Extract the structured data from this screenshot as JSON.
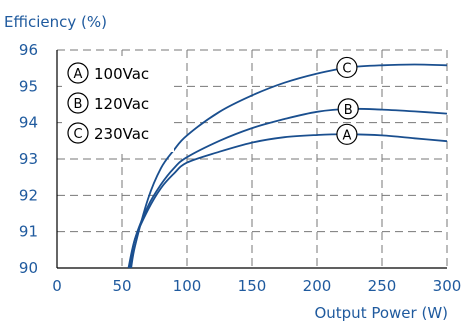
{
  "chart_data": {
    "type": "line",
    "ylabel": "Efficiency (%)",
    "xlabel": "Output Power (W)",
    "xlim": [
      0,
      300
    ],
    "ylim": [
      90,
      96
    ],
    "x_ticks": [
      "0",
      "50",
      "100",
      "150",
      "200",
      "250",
      "300"
    ],
    "y_ticks": [
      "90",
      "91",
      "92",
      "93",
      "94",
      "95",
      "96"
    ],
    "grid": true,
    "legend_position": "top-left",
    "colors": {
      "axis_text": "#1f5a9e",
      "series": "#1a4f8f",
      "grid": "#777777"
    },
    "series": [
      {
        "name": "100Vac",
        "marker": "A",
        "x": [
          55,
          60,
          70,
          80,
          90,
          100,
          125,
          150,
          175,
          200,
          225,
          250,
          275,
          300
        ],
        "y": [
          90.0,
          90.8,
          91.6,
          92.2,
          92.6,
          92.9,
          93.2,
          93.45,
          93.6,
          93.66,
          93.68,
          93.65,
          93.57,
          93.49
        ]
      },
      {
        "name": "120Vac",
        "marker": "B",
        "x": [
          56,
          60,
          70,
          80,
          90,
          100,
          125,
          150,
          175,
          200,
          225,
          250,
          275,
          300
        ],
        "y": [
          90.0,
          90.8,
          91.7,
          92.3,
          92.75,
          93.05,
          93.5,
          93.85,
          94.1,
          94.3,
          94.38,
          94.36,
          94.31,
          94.25
        ]
      },
      {
        "name": "230Vac",
        "marker": "C",
        "x": [
          57,
          60,
          70,
          80,
          90,
          100,
          125,
          150,
          175,
          200,
          225,
          250,
          275,
          300
        ],
        "y": [
          90.0,
          90.6,
          91.9,
          92.75,
          93.25,
          93.65,
          94.3,
          94.75,
          95.1,
          95.35,
          95.52,
          95.58,
          95.6,
          95.58
        ]
      }
    ],
    "markers": [
      {
        "label": "C",
        "x": 223,
        "y": 95.52
      },
      {
        "label": "B",
        "x": 224,
        "y": 94.38
      },
      {
        "label": "A",
        "x": 223,
        "y": 93.68
      }
    ]
  }
}
